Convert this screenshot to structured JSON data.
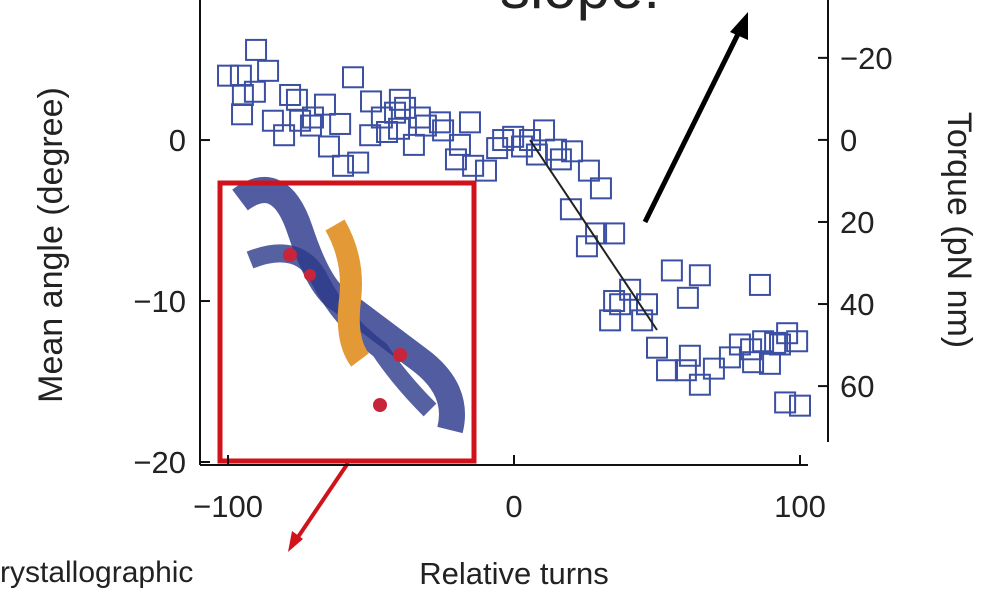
{
  "chart_data": {
    "type": "scatter",
    "top_text": "slope:",
    "bottom_text": "rystallographic",
    "xlabel": "Relative turns",
    "ylabel": "Mean angle (degree)",
    "y2label": "Torque (pN nm)",
    "xlim": [
      -109.8,
      102.8
    ],
    "ylim": [
      -20,
      8.7
    ],
    "y2lim": [
      78.5,
      -34.1
    ],
    "xticks": [
      {
        "value": -100,
        "label": "−100"
      },
      0,
      100
    ],
    "yticks": [
      {
        "value": -20,
        "label": "−20"
      },
      {
        "value": -10,
        "label": "−10"
      },
      0
    ],
    "y2ticks": [
      {
        "value": -20,
        "label": "−20"
      },
      0,
      20,
      40,
      60
    ],
    "color": "#3b4fa3",
    "x": [
      -100.0,
      -95.5,
      -90.2,
      -86.0,
      -94.8,
      -90.6,
      -95.1,
      -84.3,
      -78.3,
      -80.4,
      -75.9,
      -74.8,
      -70.3,
      -71.0,
      -66.1,
      -64.7,
      -60.8,
      -59.8,
      -56.3,
      -54.5,
      -50.0,
      -50.3,
      -46.2,
      -44.4,
      -41.6,
      -39.9,
      -40.2,
      -38.1,
      -35.0,
      -32.9,
      -30.8,
      -25.9,
      -24.8,
      -20.3,
      -18.9,
      -15.4,
      -14.3,
      -9.8,
      -5.9,
      -3.8,
      -0.3,
      2.8,
      5.6,
      10.5,
      8.0,
      14.7,
      16.4,
      20.3,
      26.2,
      30.4,
      19.9,
      25.5,
      35.0,
      28.7,
      35.0,
      33.6,
      40.6,
      37.1,
      44.8,
      50.0,
      46.5,
      55.2,
      65.0,
      60.8,
      53.5,
      60.1,
      65.0,
      69.9,
      61.5,
      75.5,
      79.0,
      82.9,
      86.0,
      83.6,
      87.1,
      89.5,
      95.5,
      93.0,
      99.0,
      91.3,
      94.8,
      100.0
    ],
    "values": [
      4.0,
      4.0,
      5.6,
      4.3,
      2.8,
      3.0,
      1.6,
      1.2,
      2.8,
      0.3,
      2.5,
      1.2,
      1.4,
      0.9,
      2.2,
      -0.4,
      1.0,
      -1.6,
      3.9,
      -1.4,
      2.4,
      0.3,
      1.4,
      0.5,
      1.7,
      2.5,
      0.7,
      2.0,
      -0.3,
      1.4,
      0.9,
      1.1,
      0.6,
      -1.2,
      -0.3,
      1.1,
      -1.6,
      -1.9,
      -0.5,
      0.0,
      0.2,
      -0.4,
      0.0,
      0.6,
      -0.9,
      -0.6,
      -1.2,
      -0.7,
      -1.9,
      -3.0,
      -4.3,
      -6.6,
      -5.8,
      -5.8,
      -10.0,
      -11.2,
      -9.3,
      -10.2,
      -11.2,
      -12.9,
      -10.2,
      -8.1,
      -8.4,
      -9.8,
      -14.3,
      -14.3,
      -15.2,
      -14.2,
      -13.4,
      -13.5,
      -12.7,
      -13.0,
      -9.0,
      -13.8,
      -12.5,
      -13.9,
      -12.0,
      -12.7,
      -12.5,
      -12.6,
      -16.3,
      -16.5
    ],
    "fit": {
      "x": [
        5.6,
        50.0
      ],
      "values": [
        0.0,
        -11.8
      ],
      "color": "#222222"
    }
  }
}
